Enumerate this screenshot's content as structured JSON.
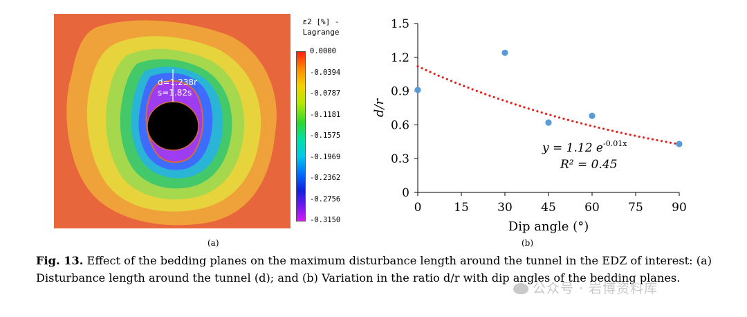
{
  "panel_a": {
    "annotation_d": "d=1.238r",
    "annotation_s": "s=1.82s",
    "legend_title_line1": "ε2 [%] -",
    "legend_title_line2": "Lagrange",
    "legend_ticks": [
      "0.0000",
      "-0.0394",
      "-0.0787",
      "-0.1181",
      "-0.1575",
      "-0.1969",
      "-0.2362",
      "-0.2756",
      "-0.3150"
    ],
    "sublabel": "(a)",
    "colors": {
      "outer": "#e8663c",
      "band1": "#f0a23a",
      "band2": "#e7d43c",
      "band3": "#a6d84e",
      "band4": "#43c86a",
      "band5": "#2ab5d6",
      "band6": "#3d6cff",
      "inner": "#9d3cf0",
      "core": "#000000"
    }
  },
  "chart_data": {
    "type": "scatter",
    "x": [
      0,
      30,
      45,
      60,
      90
    ],
    "y": [
      0.91,
      1.24,
      0.62,
      0.68,
      0.43
    ],
    "xlabel": "Dip angle (°)",
    "ylabel": "d/r",
    "xlim": [
      0,
      90
    ],
    "ylim": [
      0,
      1.5
    ],
    "xticks": [
      "0",
      "15",
      "30",
      "45",
      "60",
      "75",
      "90"
    ],
    "yticks": [
      "0",
      "0.3",
      "0.6",
      "0.9",
      "1.2",
      "1.5"
    ],
    "trendline": {
      "type": "exponential",
      "a": 1.12,
      "b": -0.0107
    },
    "equation_prefix": "y = 1.12 e",
    "equation_exponent": "-0.01x",
    "r2_label": "R² = 0.45",
    "point_color": "#5b9bd5",
    "trend_color": "#e8201c",
    "sublabel": "(b)"
  },
  "caption": {
    "fig_label": "Fig. 13.",
    "text": " Effect of the bedding planes on the maximum disturbance length around the tunnel in the EDZ of interest: (a) Disturbance length around the tunnel (d); and (b) Variation in the ratio d/r with dip angles of the bedding planes."
  },
  "watermark": "公众号 · 岩博资料库"
}
